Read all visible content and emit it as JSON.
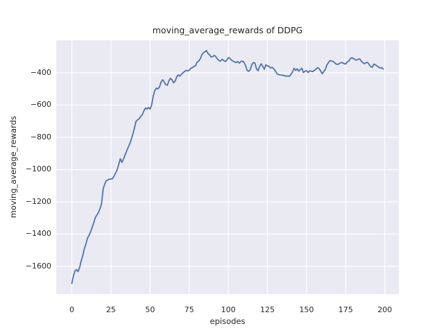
{
  "chart_data": {
    "type": "line",
    "title": "moving_average_rewards of DDPG",
    "xlabel": "episodes",
    "ylabel": "moving_average_rewards",
    "grid": true,
    "legend": false,
    "style": "seaborn-darkgrid",
    "axes_background": "#EAEAF2",
    "grid_color": "#FFFFFF",
    "figure_background": "#FFFFFF",
    "text_color": "#262626",
    "xlim": [
      -10,
      209
    ],
    "ylim": [
      -1772,
      -198
    ],
    "x_ticks": [
      0,
      25,
      50,
      75,
      100,
      125,
      150,
      175,
      200
    ],
    "y_ticks": [
      -400,
      -600,
      -800,
      -1000,
      -1200,
      -1400,
      -1600
    ],
    "x_start": 0,
    "x_step": 1,
    "series": [
      {
        "name": "moving_average_rewards",
        "color": "#4C72B0",
        "values": [
          -1705,
          -1660,
          -1628,
          -1620,
          -1632,
          -1605,
          -1565,
          -1532,
          -1490,
          -1462,
          -1425,
          -1408,
          -1385,
          -1358,
          -1330,
          -1297,
          -1282,
          -1267,
          -1242,
          -1210,
          -1120,
          -1090,
          -1068,
          -1064,
          -1060,
          -1058,
          -1056,
          -1040,
          -1020,
          -1000,
          -965,
          -932,
          -955,
          -935,
          -910,
          -885,
          -862,
          -840,
          -812,
          -780,
          -742,
          -701,
          -692,
          -685,
          -670,
          -660,
          -637,
          -618,
          -624,
          -615,
          -624,
          -600,
          -545,
          -510,
          -495,
          -499,
          -488,
          -458,
          -443,
          -456,
          -473,
          -477,
          -450,
          -434,
          -443,
          -462,
          -452,
          -425,
          -413,
          -420,
          -410,
          -400,
          -392,
          -385,
          -388,
          -384,
          -372,
          -368,
          -360,
          -357,
          -335,
          -327,
          -315,
          -290,
          -276,
          -270,
          -262,
          -280,
          -288,
          -302,
          -300,
          -292,
          -300,
          -314,
          -324,
          -327,
          -316,
          -323,
          -330,
          -322,
          -306,
          -310,
          -322,
          -327,
          -333,
          -336,
          -330,
          -340,
          -330,
          -327,
          -335,
          -355,
          -385,
          -391,
          -380,
          -350,
          -336,
          -340,
          -375,
          -387,
          -360,
          -344,
          -360,
          -378,
          -350,
          -357,
          -360,
          -370,
          -366,
          -375,
          -387,
          -405,
          -411,
          -413,
          -414,
          -415,
          -418,
          -421,
          -419,
          -422,
          -410,
          -395,
          -372,
          -385,
          -375,
          -390,
          -379,
          -372,
          -398,
          -390,
          -387,
          -398,
          -388,
          -390,
          -392,
          -384,
          -378,
          -367,
          -374,
          -388,
          -406,
          -392,
          -378,
          -350,
          -336,
          -324,
          -327,
          -330,
          -338,
          -346,
          -348,
          -342,
          -336,
          -338,
          -343,
          -345,
          -332,
          -327,
          -312,
          -306,
          -312,
          -318,
          -322,
          -315,
          -314,
          -328,
          -337,
          -344,
          -337,
          -335,
          -349,
          -362,
          -366,
          -345,
          -351,
          -357,
          -364,
          -370,
          -368,
          -376
        ]
      }
    ]
  }
}
